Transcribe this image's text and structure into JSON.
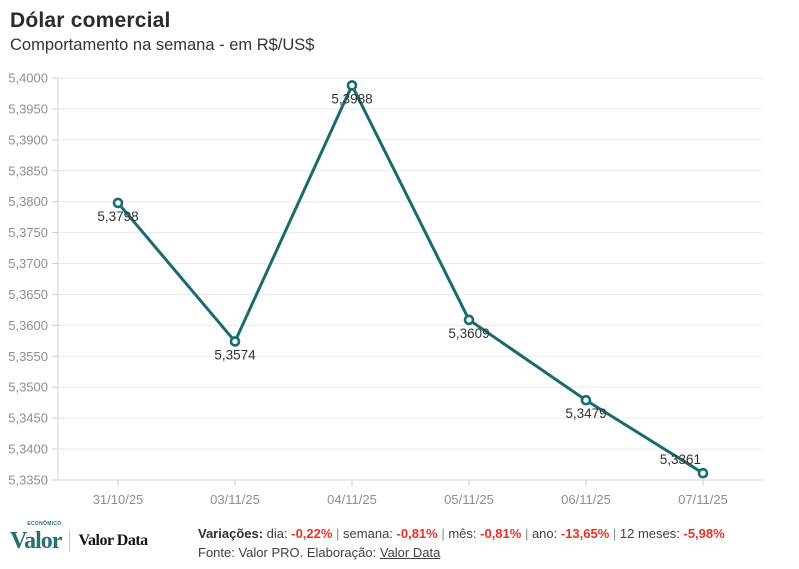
{
  "header": {
    "title": "Dólar comercial",
    "subtitle": "Comportamento na semana - em R$/US$"
  },
  "chart_data": {
    "type": "line",
    "x": [
      "31/10/25",
      "03/11/25",
      "04/11/25",
      "05/11/25",
      "06/11/25",
      "07/11/25"
    ],
    "values": [
      5.3798,
      5.3574,
      5.3988,
      5.3609,
      5.3479,
      5.3361
    ],
    "point_labels": [
      "5,3798",
      "5,3574",
      "5,3988",
      "5,3609",
      "5,3479",
      "5,3361"
    ],
    "ylim": [
      5.335,
      5.4
    ],
    "ytick_step": 0.005,
    "ytick_labels": [
      "5,3350",
      "5,3400",
      "5,3450",
      "5,3500",
      "5,3550",
      "5,3600",
      "5,3650",
      "5,3700",
      "5,3750",
      "5,3800",
      "5,3850",
      "5,3900",
      "5,3950",
      "5,4000"
    ],
    "grid": true,
    "legend": "none",
    "marker": "hollow-circle",
    "line_color": "#1a6b6d",
    "grid_color": "#ebebeb",
    "axis_color": "#d6d6d6",
    "tick_color": "#cfcfcf",
    "axis_text_color": "#8f8f8f",
    "point_label_color": "#333333"
  },
  "footer": {
    "logo": {
      "valor": "Valor",
      "valor_small": "ECONÔMICO",
      "valor_data": "Valor Data"
    },
    "variations": {
      "label": "Variações:",
      "separator": "|",
      "value_color": "#e63328",
      "items": [
        {
          "name": "dia:",
          "value": "-0,22%"
        },
        {
          "name": "semana:",
          "value": "-0,81%"
        },
        {
          "name": "mês:",
          "value": "-0,81%"
        },
        {
          "name": "ano:",
          "value": "-13,65%"
        },
        {
          "name": "12 meses:",
          "value": "-5,98%"
        }
      ]
    },
    "source": {
      "prefix": "Fonte: Valor PRO. Elaboração: ",
      "link": "Valor Data"
    }
  }
}
